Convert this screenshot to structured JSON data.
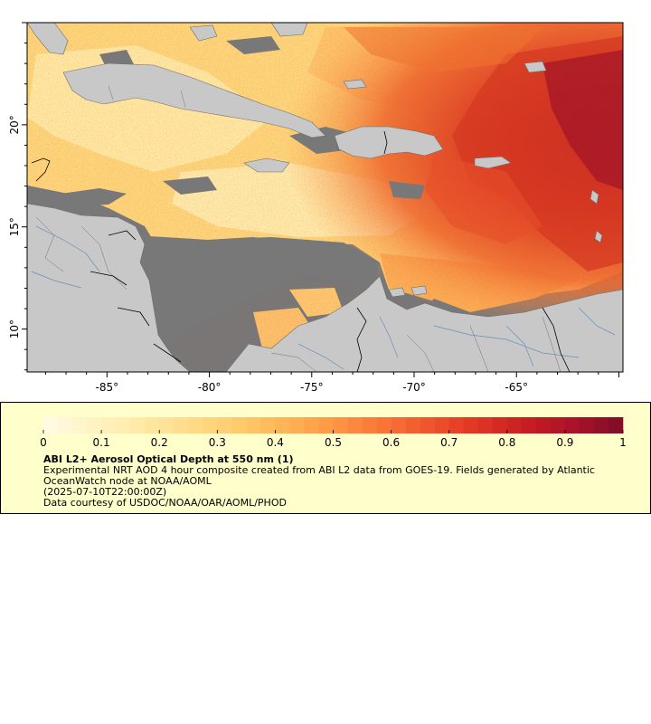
{
  "map": {
    "lon_ticks": [
      {
        "value": -85,
        "label": "-85°"
      },
      {
        "value": -80,
        "label": "-80°"
      },
      {
        "value": -75,
        "label": "-75°"
      },
      {
        "value": -70,
        "label": "-70°"
      },
      {
        "value": -65,
        "label": "-65°"
      }
    ],
    "lat_ticks": [
      {
        "value": 20,
        "label": "20°"
      },
      {
        "value": 15,
        "label": "15°"
      },
      {
        "value": 10,
        "label": "10°"
      }
    ],
    "lon_range": [
      -88.9,
      -59.8
    ],
    "lat_range": [
      7.9,
      25.0
    ],
    "colors": {
      "land": "#c8c8c8",
      "no_data": "#787878",
      "border": "#000000",
      "river": "#6b8fb5",
      "admin_line": "#707070"
    }
  },
  "legend": {
    "tick_labels": [
      "0",
      "0.1",
      "0.2",
      "0.3",
      "0.4",
      "0.5",
      "0.6",
      "0.7",
      "0.8",
      "0.9",
      "1"
    ],
    "range": [
      0,
      1
    ],
    "title": "ABI L2+ Aerosol Optical Depth at 550 nm (1)",
    "description": "Experimental NRT AOD 4 hour composite created from ABI L2 data from GOES-19. Fields generated by Atlantic OceanWatch node at NOAA/AOML",
    "time": "(2025-07-10T22:00:00Z)",
    "credit": "Data courtesy of USDOC/NOAA/OAR/AOML/PHOD",
    "colors": [
      "#fffbe6",
      "#fff3c4",
      "#ffe9a6",
      "#fedc8a",
      "#fecb6c",
      "#feb456",
      "#fd9744",
      "#f97636",
      "#f0542c",
      "#e03424",
      "#c81d22",
      "#a8122a",
      "#7e0c26"
    ]
  }
}
